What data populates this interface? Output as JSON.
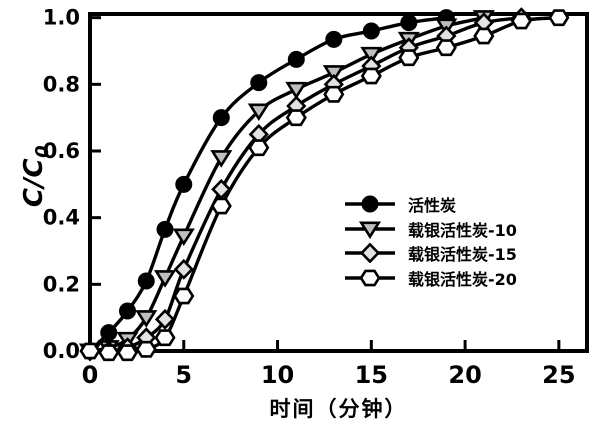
{
  "figure": {
    "background": "#ffffff",
    "frame_color": "#000000"
  },
  "chart_data": {
    "type": "line",
    "title": "",
    "xlabel": "时间（分钟）",
    "ylabel_main": "C/C",
    "ylabel_sub": "0",
    "xlim": [
      0,
      26.5
    ],
    "ylim": [
      0,
      1.011
    ],
    "xticks": [
      0,
      5,
      10,
      15,
      20,
      25
    ],
    "xtick_labels": [
      "0",
      "5",
      "10",
      "15",
      "20",
      "25"
    ],
    "yticks": [
      0,
      0.2,
      0.4,
      0.6,
      0.8,
      1.0
    ],
    "ytick_labels": [
      "0.0",
      "0.2",
      "0.4",
      "0.6",
      "0.8",
      "1.0"
    ],
    "grid": false,
    "legend_position": "inside-center-right",
    "line_color": "#000000",
    "series": [
      {
        "name": "活性炭",
        "marker": "circle",
        "marker_fill": "#000000",
        "x": [
          0,
          1,
          2,
          3,
          4,
          5,
          7,
          9,
          11,
          13,
          15,
          17,
          19
        ],
        "y": [
          0.0,
          0.055,
          0.12,
          0.21,
          0.365,
          0.5,
          0.7,
          0.805,
          0.875,
          0.935,
          0.96,
          0.985,
          1.0
        ]
      },
      {
        "name": "载银活性炭-10",
        "marker": "triangle-down",
        "marker_fill": "#bfbfbf",
        "x": [
          0,
          1,
          2,
          3,
          4,
          5,
          7,
          9,
          11,
          13,
          15,
          17,
          19,
          21
        ],
        "y": [
          0.0,
          0.01,
          0.035,
          0.1,
          0.22,
          0.345,
          0.58,
          0.72,
          0.785,
          0.835,
          0.89,
          0.935,
          0.975,
          1.0
        ]
      },
      {
        "name": "载银活性炭-15",
        "marker": "diamond",
        "marker_fill": "#e2e2e2",
        "x": [
          0,
          1,
          2,
          3,
          4,
          5,
          7,
          9,
          11,
          13,
          15,
          17,
          19,
          21,
          23
        ],
        "y": [
          0.0,
          0.0,
          0.01,
          0.04,
          0.095,
          0.245,
          0.485,
          0.65,
          0.735,
          0.8,
          0.855,
          0.91,
          0.945,
          0.985,
          1.0
        ]
      },
      {
        "name": "载银活性炭-20",
        "marker": "hexagon",
        "marker_fill": "#ffffff",
        "x": [
          0,
          1,
          2,
          3,
          4,
          5,
          7,
          9,
          11,
          13,
          15,
          17,
          19,
          21,
          23,
          25
        ],
        "y": [
          0.0,
          -0.005,
          -0.005,
          0.005,
          0.04,
          0.165,
          0.435,
          0.61,
          0.7,
          0.77,
          0.825,
          0.88,
          0.91,
          0.945,
          0.99,
          1.0
        ]
      }
    ]
  }
}
